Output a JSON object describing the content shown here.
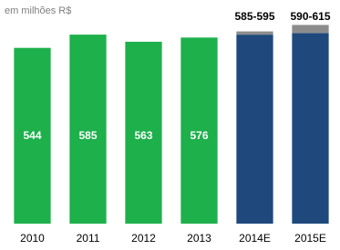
{
  "chart_data": {
    "type": "bar",
    "unit_label": "em milhões R$",
    "categories": [
      "2010",
      "2011",
      "2012",
      "2013",
      "2014E",
      "2015E"
    ],
    "values": [
      544,
      585,
      563,
      576,
      585,
      590
    ],
    "value_labels": [
      "544",
      "585",
      "563",
      "576",
      "585-595",
      "590-615"
    ],
    "high": [
      null,
      null,
      null,
      null,
      595,
      615
    ],
    "color": "#1db04b",
    "estimate_color": "#1f497d",
    "range_color": "#8c8c8c",
    "ylim": [
      0,
      650
    ]
  }
}
